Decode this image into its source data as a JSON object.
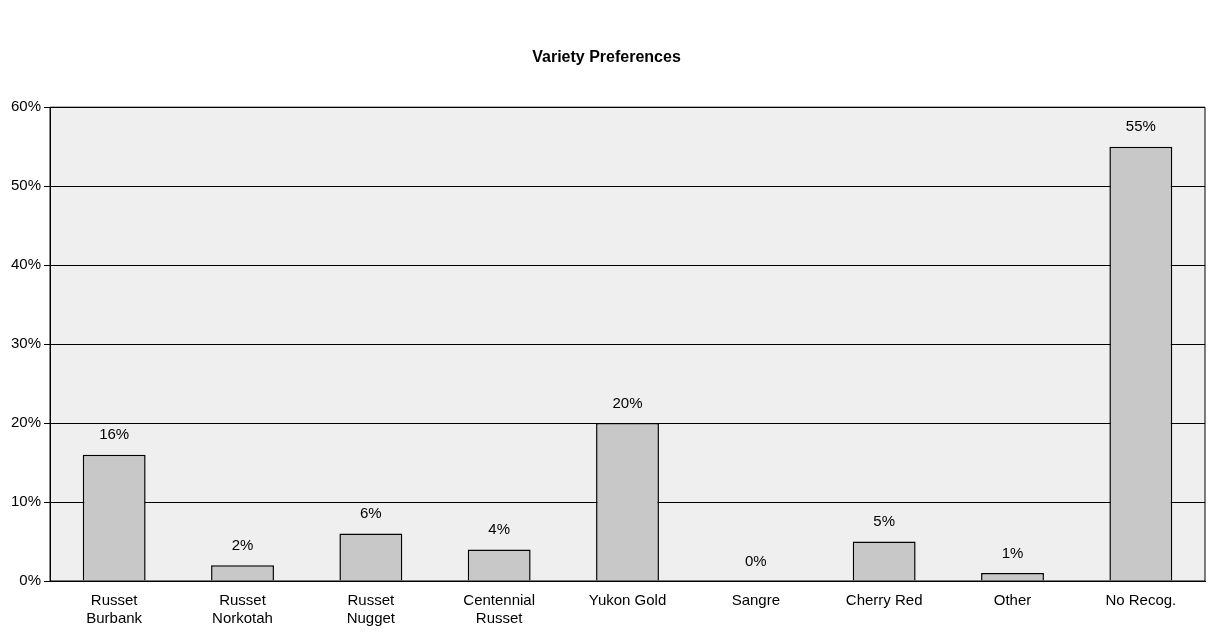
{
  "chart_data": {
    "type": "bar",
    "title": "Variety Preferences",
    "categories": [
      "Russet Burbank",
      "Russet Norkotah",
      "Russet Nugget",
      "Centennial Russet",
      "Yukon Gold",
      "Sangre",
      "Cherry Red",
      "Other",
      "No Recog."
    ],
    "values": [
      16,
      2,
      6,
      4,
      20,
      0,
      5,
      1,
      55
    ],
    "value_labels": [
      "16%",
      "2%",
      "6%",
      "4%",
      "20%",
      "0%",
      "5%",
      "1%",
      "55%"
    ],
    "color": "#c8c8c8",
    "ylim": [
      0,
      60
    ],
    "yticks": [
      {
        "value": 0,
        "label": "0%"
      },
      {
        "value": 10,
        "label": "10%"
      },
      {
        "value": 20,
        "label": "20%"
      },
      {
        "value": 30,
        "label": "30%"
      },
      {
        "value": 40,
        "label": "40%"
      },
      {
        "value": 50,
        "label": "50%"
      },
      {
        "value": 60,
        "label": "60%"
      }
    ],
    "grid": "y",
    "legend": false
  }
}
